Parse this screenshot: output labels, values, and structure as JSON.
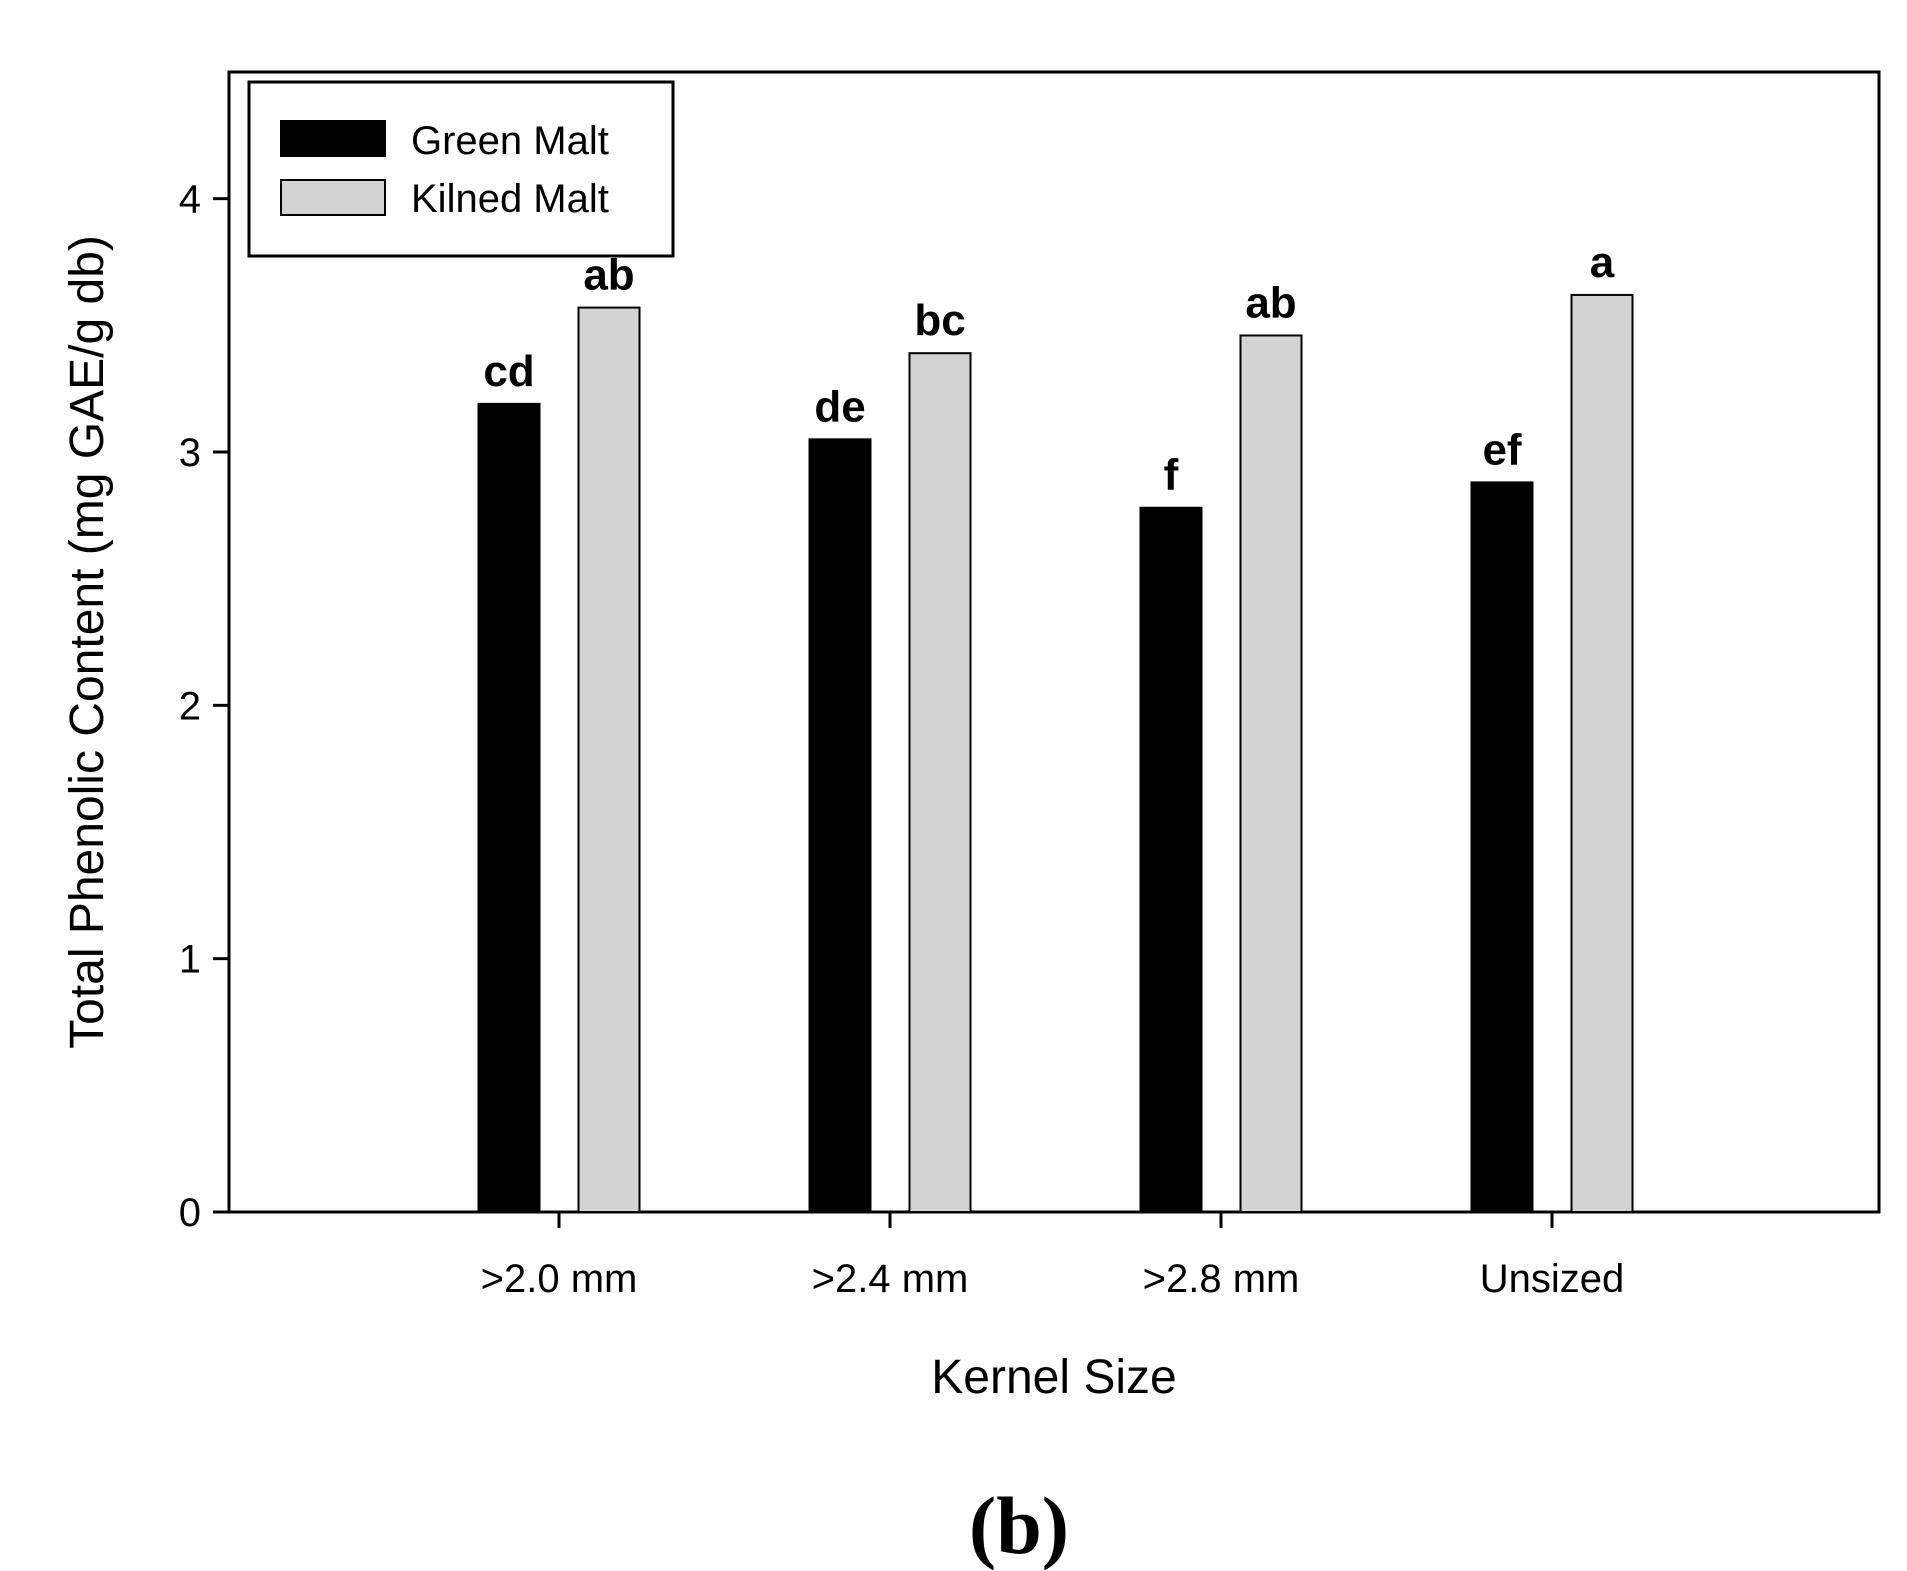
{
  "chart_data": {
    "type": "bar",
    "title": "",
    "panel_label": "(b)",
    "xlabel": "Kernel Size",
    "ylabel": "Total Phenolic Content (mg GAE/g db)",
    "categories": [
      ">2.0 mm",
      ">2.4 mm",
      ">2.8 mm",
      "Unsized"
    ],
    "ylim": [
      0,
      4.5
    ],
    "yticks": [
      0,
      1,
      2,
      3,
      4
    ],
    "ytick_labels": [
      "0",
      "1",
      "2",
      "3",
      "4"
    ],
    "grid": false,
    "legend_position": "top-left",
    "series": [
      {
        "name": "Green Malt",
        "color": "#000000",
        "values": [
          3.19,
          3.05,
          2.78,
          2.88
        ],
        "labels": [
          "cd",
          "de",
          "f",
          "ef"
        ]
      },
      {
        "name": "Kilned Malt",
        "color": "#d3d3d3",
        "values": [
          3.57,
          3.39,
          3.46,
          3.62
        ],
        "labels": [
          "ab",
          "bc",
          "ab",
          "a"
        ]
      }
    ]
  }
}
